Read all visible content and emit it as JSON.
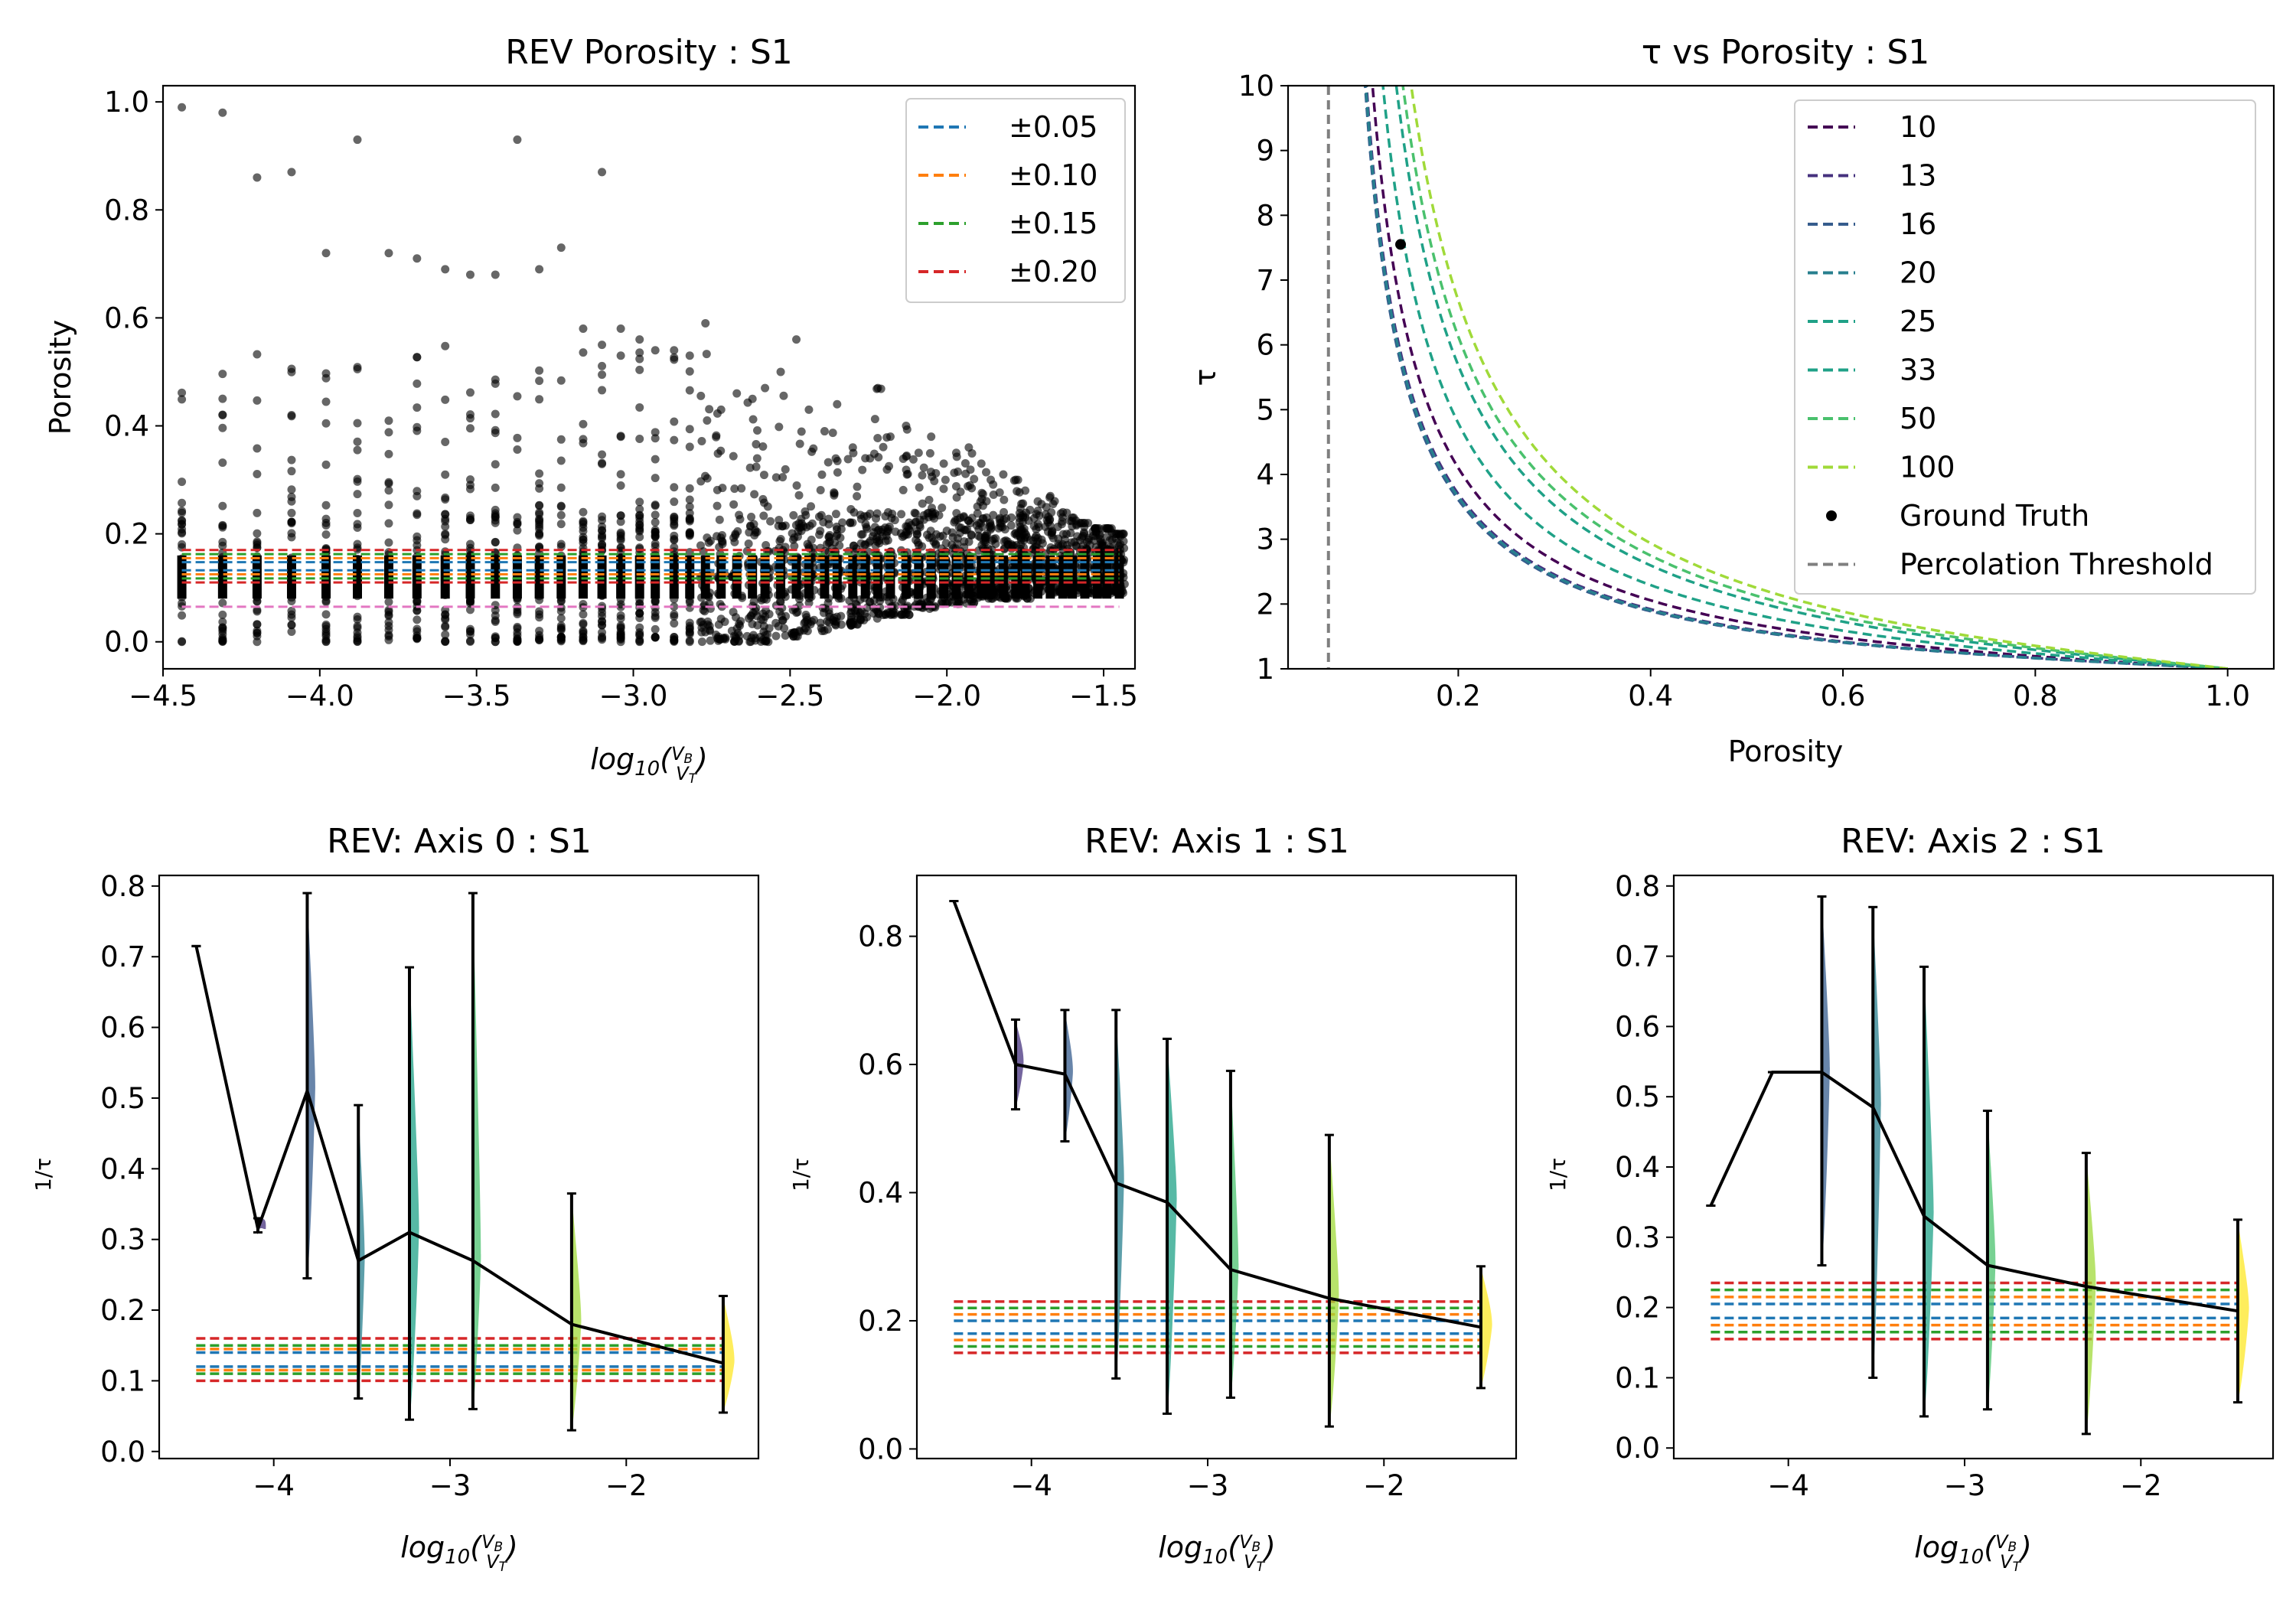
{
  "colors": {
    "tol": [
      "#1f77b4",
      "#ff7f0e",
      "#2ca02c",
      "#d62728"
    ],
    "threshold": "#e377c2",
    "viridis": [
      "#440154",
      "#46327e",
      "#365c8d",
      "#277f8e",
      "#1fa187",
      "#4ac16d",
      "#a0da39",
      "#fde725"
    ],
    "mean_line": "#000000",
    "percolation": "#7f7f7f"
  },
  "chart_data": [
    {
      "id": "rev-porosity",
      "type": "scatter",
      "title": "REV Porosity : S1",
      "xlabel": "log10(VB/VT)",
      "ylabel": "Porosity",
      "xlim": [
        -4.5,
        -1.4
      ],
      "ylim": [
        -0.05,
        1.03
      ],
      "xticks": [
        -4.5,
        -4.0,
        -3.5,
        -3.0,
        -2.5,
        -2.0,
        -1.5
      ],
      "xtick_labels": [
        "−4.5",
        "−4.0",
        "−3.5",
        "−3.0",
        "−2.5",
        "−2.0",
        "−1.5"
      ],
      "yticks": [
        0.0,
        0.2,
        0.4,
        0.6,
        0.8,
        1.0
      ],
      "ytick_labels": [
        "0.0",
        "0.2",
        "0.4",
        "0.6",
        "0.8",
        "1.0"
      ],
      "legend": [
        "±0.05",
        "±0.10",
        "±0.15",
        "±0.20"
      ],
      "legend_position": "upper right",
      "reference_porosity": 0.14,
      "tolerances": [
        0.05,
        0.1,
        0.15,
        0.2
      ],
      "threshold_line": 0.065,
      "column_x": [
        -4.44,
        -4.31,
        -4.2,
        -4.09,
        -3.98,
        -3.88,
        -3.78,
        -3.69,
        -3.6,
        -3.52,
        -3.44,
        -3.37,
        -3.3,
        -3.23,
        -3.16,
        -3.1,
        -3.04,
        -2.98,
        -2.93,
        -2.87,
        -2.82,
        -2.77,
        -2.72,
        -2.67,
        -2.62,
        -2.58,
        -2.53,
        -2.48,
        -2.44,
        -2.39,
        -2.35,
        -2.3,
        -2.26,
        -2.22,
        -2.18,
        -2.13,
        -2.09,
        -2.05,
        -2.01,
        -1.97,
        -1.93,
        -1.89,
        -1.86,
        -1.82,
        -1.78,
        -1.75,
        -1.71,
        -1.67,
        -1.63,
        -1.6,
        -1.56,
        -1.52,
        -1.49,
        -1.45
      ],
      "column_max": [
        0.99,
        0.98,
        0.86,
        0.87,
        0.72,
        0.93,
        0.72,
        0.71,
        0.69,
        0.68,
        0.68,
        0.93,
        0.69,
        0.73,
        0.58,
        0.87,
        0.58,
        0.56,
        0.54,
        0.54,
        0.53,
        0.59,
        0.43,
        0.46,
        0.45,
        0.47,
        0.5,
        0.56,
        0.43,
        0.39,
        0.44,
        0.36,
        0.34,
        0.47,
        0.38,
        0.4,
        0.35,
        0.38,
        0.33,
        0.35,
        0.36,
        0.33,
        0.3,
        0.31,
        0.3,
        0.28,
        0.26,
        0.27,
        0.24,
        0.23,
        0.22,
        0.21,
        0.21,
        0.2
      ],
      "column_min": [
        0.0,
        0.0,
        0.0,
        0.0,
        0.0,
        0.0,
        0.0,
        0.0,
        0.0,
        0.0,
        0.0,
        0.0,
        0.0,
        0.0,
        0.0,
        0.0,
        0.0,
        0.0,
        0.0,
        0.0,
        0.0,
        0.0,
        0.0,
        0.0,
        0.0,
        0.0,
        0.01,
        0.01,
        0.02,
        0.02,
        0.03,
        0.03,
        0.04,
        0.04,
        0.05,
        0.05,
        0.06,
        0.06,
        0.07,
        0.07,
        0.07,
        0.08,
        0.08,
        0.08,
        0.08,
        0.08,
        0.09,
        0.09,
        0.09,
        0.09,
        0.09,
        0.09,
        0.09,
        0.09
      ]
    },
    {
      "id": "tau-vs-porosity",
      "type": "line",
      "title": "τ vs Porosity : S1",
      "xlabel": "Porosity",
      "ylabel": "τ",
      "xlim": [
        0.023,
        1.048
      ],
      "ylim": [
        1,
        10
      ],
      "xticks": [
        0.2,
        0.4,
        0.6,
        0.8,
        1.0
      ],
      "xtick_labels": [
        "0.2",
        "0.4",
        "0.6",
        "0.8",
        "1.0"
      ],
      "yticks": [
        1,
        2,
        3,
        4,
        5,
        6,
        7,
        8,
        9,
        10
      ],
      "ytick_labels": [
        "1",
        "2",
        "3",
        "4",
        "5",
        "6",
        "7",
        "8",
        "9",
        "10"
      ],
      "legend_position": "upper right",
      "percolation_threshold": 0.065,
      "series": [
        {
          "name": "10",
          "k": 1.39,
          "color_index": 0
        },
        {
          "name": "13",
          "k": 1.21,
          "color_index": 1
        },
        {
          "name": "16",
          "k": 1.17,
          "color_index": 2
        },
        {
          "name": "20",
          "k": 1.19,
          "color_index": 3
        },
        {
          "name": "25",
          "k": 1.7,
          "color_index": 4
        },
        {
          "name": "33",
          "k": 2.1,
          "color_index": 4
        },
        {
          "name": "50",
          "k": 2.3,
          "color_index": 5
        },
        {
          "name": "100",
          "k": 2.55,
          "color_index": 6
        }
      ],
      "ground_truth": {
        "name": "Ground Truth",
        "x": 0.14,
        "y": 7.55
      },
      "percolation_label": "Percolation Threshold"
    },
    {
      "id": "rev-axis-0",
      "type": "violin",
      "title": "REV: Axis 0 : S1",
      "xlabel": "log10(VB/VT)",
      "ylabel": "1/τ",
      "xlim": [
        -4.65,
        -1.25
      ],
      "ylim": [
        -0.01,
        0.815
      ],
      "xticks": [
        -4,
        -3,
        -2
      ],
      "xtick_labels": [
        "−4",
        "−3",
        "−2"
      ],
      "yticks": [
        0.0,
        0.1,
        0.2,
        0.3,
        0.4,
        0.5,
        0.6,
        0.7,
        0.8
      ],
      "ytick_labels": [
        "0.0",
        "0.1",
        "0.2",
        "0.3",
        "0.4",
        "0.5",
        "0.6",
        "0.7",
        "0.8"
      ],
      "reference": 0.13,
      "tolerances": [
        0.01,
        0.015,
        0.02,
        0.03
      ],
      "band_x": [
        -4.44,
        -1.45
      ],
      "positions": [
        -4.44,
        -4.09,
        -3.81,
        -3.52,
        -3.23,
        -2.87,
        -2.31,
        -1.45
      ],
      "mean": [
        0.715,
        0.315,
        0.51,
        0.27,
        0.31,
        0.27,
        0.18,
        0.125
      ],
      "min": [
        0.715,
        0.31,
        0.245,
        0.075,
        0.045,
        0.06,
        0.03,
        0.055
      ],
      "max": [
        0.715,
        0.33,
        0.79,
        0.49,
        0.685,
        0.79,
        0.365,
        0.22
      ],
      "widths": [
        0,
        0.05,
        0.05,
        0.04,
        0.06,
        0.05,
        0.06,
        0.07
      ]
    },
    {
      "id": "rev-axis-1",
      "type": "violin",
      "title": "REV: Axis 1 : S1",
      "xlabel": "log10(VB/VT)",
      "ylabel": "1/τ",
      "xlim": [
        -4.65,
        -1.25
      ],
      "ylim": [
        -0.015,
        0.895
      ],
      "xticks": [
        -4,
        -3,
        -2
      ],
      "xtick_labels": [
        "−4",
        "−3",
        "−2"
      ],
      "yticks": [
        0.0,
        0.2,
        0.4,
        0.6,
        0.8
      ],
      "ytick_labels": [
        "0.0",
        "0.2",
        "0.4",
        "0.6",
        "0.8"
      ],
      "reference": 0.19,
      "tolerances": [
        0.01,
        0.02,
        0.03,
        0.04
      ],
      "band_x": [
        -4.44,
        -1.45
      ],
      "positions": [
        -4.44,
        -4.09,
        -3.81,
        -3.52,
        -3.23,
        -2.87,
        -2.31,
        -1.45
      ],
      "mean": [
        0.855,
        0.6,
        0.585,
        0.415,
        0.385,
        0.28,
        0.235,
        0.19
      ],
      "min": [
        0.855,
        0.53,
        0.48,
        0.11,
        0.055,
        0.08,
        0.035,
        0.095
      ],
      "max": [
        0.855,
        0.67,
        0.685,
        0.685,
        0.64,
        0.59,
        0.49,
        0.285
      ],
      "widths": [
        0,
        0.05,
        0.05,
        0.05,
        0.06,
        0.05,
        0.06,
        0.07
      ]
    },
    {
      "id": "rev-axis-2",
      "type": "violin",
      "title": "REV: Axis 2 : S1",
      "xlabel": "log10(VB/VT)",
      "ylabel": "1/τ",
      "xlim": [
        -4.65,
        -1.25
      ],
      "ylim": [
        -0.015,
        0.815
      ],
      "xticks": [
        -4,
        -3,
        -2
      ],
      "xtick_labels": [
        "−4",
        "−3",
        "−2"
      ],
      "yticks": [
        0.0,
        0.1,
        0.2,
        0.3,
        0.4,
        0.5,
        0.6,
        0.7,
        0.8
      ],
      "ytick_labels": [
        "0.0",
        "0.1",
        "0.2",
        "0.3",
        "0.4",
        "0.5",
        "0.6",
        "0.7",
        "0.8"
      ],
      "reference": 0.195,
      "tolerances": [
        0.01,
        0.02,
        0.03,
        0.04
      ],
      "band_x": [
        -4.44,
        -1.45
      ],
      "positions": [
        -4.44,
        -4.09,
        -3.81,
        -3.52,
        -3.23,
        -2.87,
        -2.31,
        -1.45
      ],
      "mean": [
        0.345,
        0.535,
        0.535,
        0.485,
        0.33,
        0.26,
        0.23,
        0.195
      ],
      "min": [
        0.345,
        0.535,
        0.26,
        0.1,
        0.045,
        0.055,
        0.02,
        0.065
      ],
      "max": [
        0.345,
        0.535,
        0.785,
        0.77,
        0.685,
        0.48,
        0.42,
        0.325
      ],
      "widths": [
        0,
        0,
        0.05,
        0.05,
        0.06,
        0.05,
        0.06,
        0.07
      ]
    }
  ]
}
